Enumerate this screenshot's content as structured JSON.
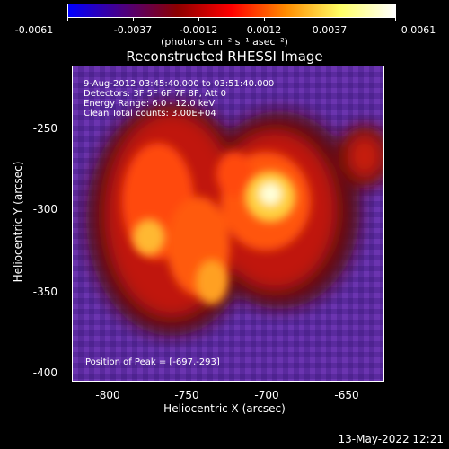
{
  "colorbar": {
    "ticks": [
      "-0.0061",
      "-0.0037",
      "-0.0012",
      "0.0012",
      "0.0037",
      "0.0061"
    ],
    "units": "(photons cm⁻² s⁻¹ asec⁻²)",
    "colors": [
      "#0000ff",
      "#4b0082",
      "#8b0000",
      "#ff0000",
      "#ff8c00",
      "#ffff66",
      "#ffffff"
    ]
  },
  "plot": {
    "title": "Reconstructed RHESSI Image",
    "info": [
      "9-Aug-2012 03:45:40.000 to 03:51:40.000",
      "Detectors: 3F 5F 6F 7F 8F, Att 0",
      "Energy Range: 6.0 - 12.0 keV",
      "Clean    Total counts: 3.00E+04"
    ],
    "peak": "Position of Peak = [-697,-293]",
    "xlabel": "Heliocentric X (arcsec)",
    "ylabel": "Heliocentric Y (arcsec)",
    "xticks": [
      "-800",
      "-750",
      "-700",
      "-650"
    ],
    "yticks": [
      "-250",
      "-300",
      "-350",
      "-400"
    ]
  },
  "timestamp": "13-May-2022 12:21"
}
